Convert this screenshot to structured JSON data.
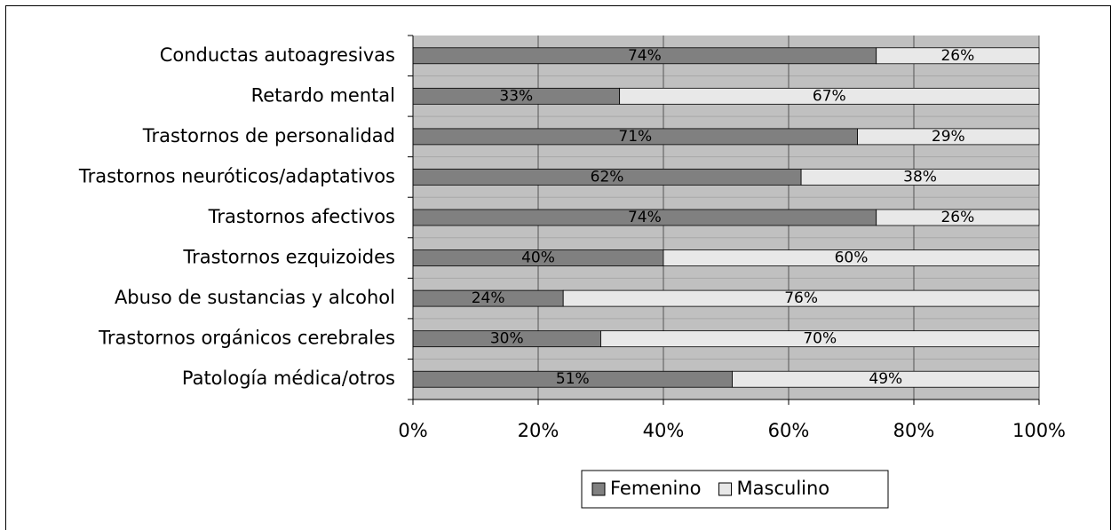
{
  "chart_data": {
    "type": "stacked_barh",
    "categories": [
      "Conductas autoagresivas",
      "Retardo mental",
      "Trastornos de personalidad",
      "Trastornos neuróticos/adaptativos",
      "Trastornos afectivos",
      "Trastornos ezquizoides",
      "Abuso de sustancias y alcohol",
      "Trastornos orgánicos cerebrales",
      "Patología médica/otros"
    ],
    "series": [
      {
        "name": "Femenino",
        "color": "#808080",
        "values": [
          74,
          33,
          71,
          62,
          74,
          40,
          24,
          30,
          51
        ],
        "value_labels": [
          "74%",
          "33%",
          "71%",
          "62%",
          "74%",
          "40%",
          "24%",
          "30%",
          "51%"
        ]
      },
      {
        "name": "Masculino",
        "color": "#e8e8e8",
        "values": [
          26,
          67,
          29,
          38,
          26,
          60,
          76,
          70,
          49
        ],
        "value_labels": [
          "26%",
          "67%",
          "29%",
          "38%",
          "26%",
          "60%",
          "76%",
          "70%",
          "49%"
        ]
      }
    ],
    "xlim": [
      0,
      100
    ],
    "xticks": [
      {
        "value": 0,
        "label": "0%"
      },
      {
        "value": 20,
        "label": "20%"
      },
      {
        "value": 40,
        "label": "40%"
      },
      {
        "value": 60,
        "label": "60%"
      },
      {
        "value": 80,
        "label": "80%"
      },
      {
        "value": 100,
        "label": "100%"
      }
    ],
    "grid": true,
    "legend": "bottom"
  }
}
